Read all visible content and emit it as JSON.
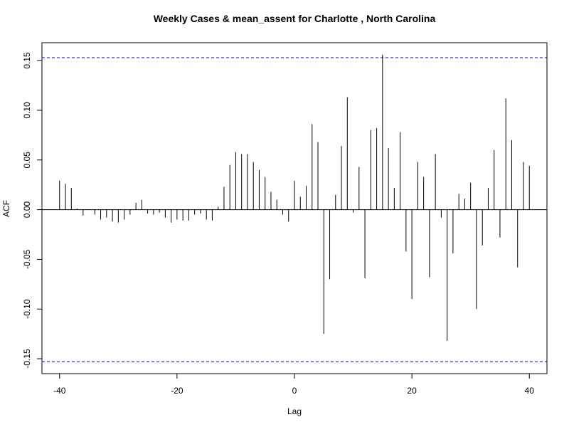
{
  "chart_data": {
    "type": "bar",
    "subtype": "acf-cross-correlation",
    "title": "Weekly Cases & mean_assent for Charlotte , North Carolina",
    "xlabel": "Lag",
    "ylabel": "ACF",
    "xlim": [
      -43,
      43
    ],
    "ylim": [
      -0.165,
      0.168
    ],
    "x_ticks": [
      -40,
      -20,
      0,
      20,
      40
    ],
    "y_ticks": [
      -0.15,
      -0.1,
      -0.05,
      0.0,
      0.05,
      0.1,
      0.15
    ],
    "y_tick_labels": [
      "-0.15",
      "-0.10",
      "-0.05",
      "0.00",
      "0.05",
      "0.10",
      "0.15"
    ],
    "confidence_bound": 0.153,
    "confidence_color": "#0000cc",
    "bar_color": "#000000",
    "lags": [
      -40,
      -39,
      -38,
      -37,
      -36,
      -35,
      -34,
      -33,
      -32,
      -31,
      -30,
      -29,
      -28,
      -27,
      -26,
      -25,
      -24,
      -23,
      -22,
      -21,
      -20,
      -19,
      -18,
      -17,
      -16,
      -15,
      -14,
      -13,
      -12,
      -11,
      -10,
      -9,
      -8,
      -7,
      -6,
      -5,
      -4,
      -3,
      -2,
      -1,
      0,
      1,
      2,
      3,
      4,
      5,
      6,
      7,
      8,
      9,
      10,
      11,
      12,
      13,
      14,
      15,
      16,
      17,
      18,
      19,
      20,
      21,
      22,
      23,
      24,
      25,
      26,
      27,
      28,
      29,
      30,
      31,
      32,
      33,
      34,
      35,
      36,
      37,
      38,
      39,
      40
    ],
    "values": [
      0.029,
      0.026,
      0.022,
      0.001,
      -0.006,
      0.0,
      -0.005,
      -0.01,
      -0.008,
      -0.012,
      -0.013,
      -0.01,
      -0.005,
      0.007,
      0.01,
      -0.004,
      -0.005,
      -0.003,
      -0.008,
      -0.013,
      -0.01,
      -0.011,
      -0.011,
      -0.005,
      -0.004,
      -0.01,
      -0.011,
      0.003,
      0.023,
      0.045,
      0.058,
      0.056,
      0.056,
      0.048,
      0.04,
      0.033,
      0.018,
      0.01,
      -0.005,
      -0.012,
      0.029,
      0.013,
      0.024,
      0.086,
      0.068,
      -0.125,
      -0.07,
      0.015,
      0.064,
      0.113,
      -0.003,
      0.043,
      -0.069,
      0.08,
      0.082,
      0.156,
      0.062,
      0.022,
      0.078,
      -0.042,
      -0.09,
      0.048,
      0.033,
      -0.068,
      0.056,
      -0.008,
      -0.132,
      -0.044,
      0.016,
      0.011,
      0.027,
      -0.1,
      -0.036,
      0.022,
      0.06,
      -0.028,
      0.112,
      0.07,
      -0.058,
      0.048,
      0.044
    ]
  }
}
